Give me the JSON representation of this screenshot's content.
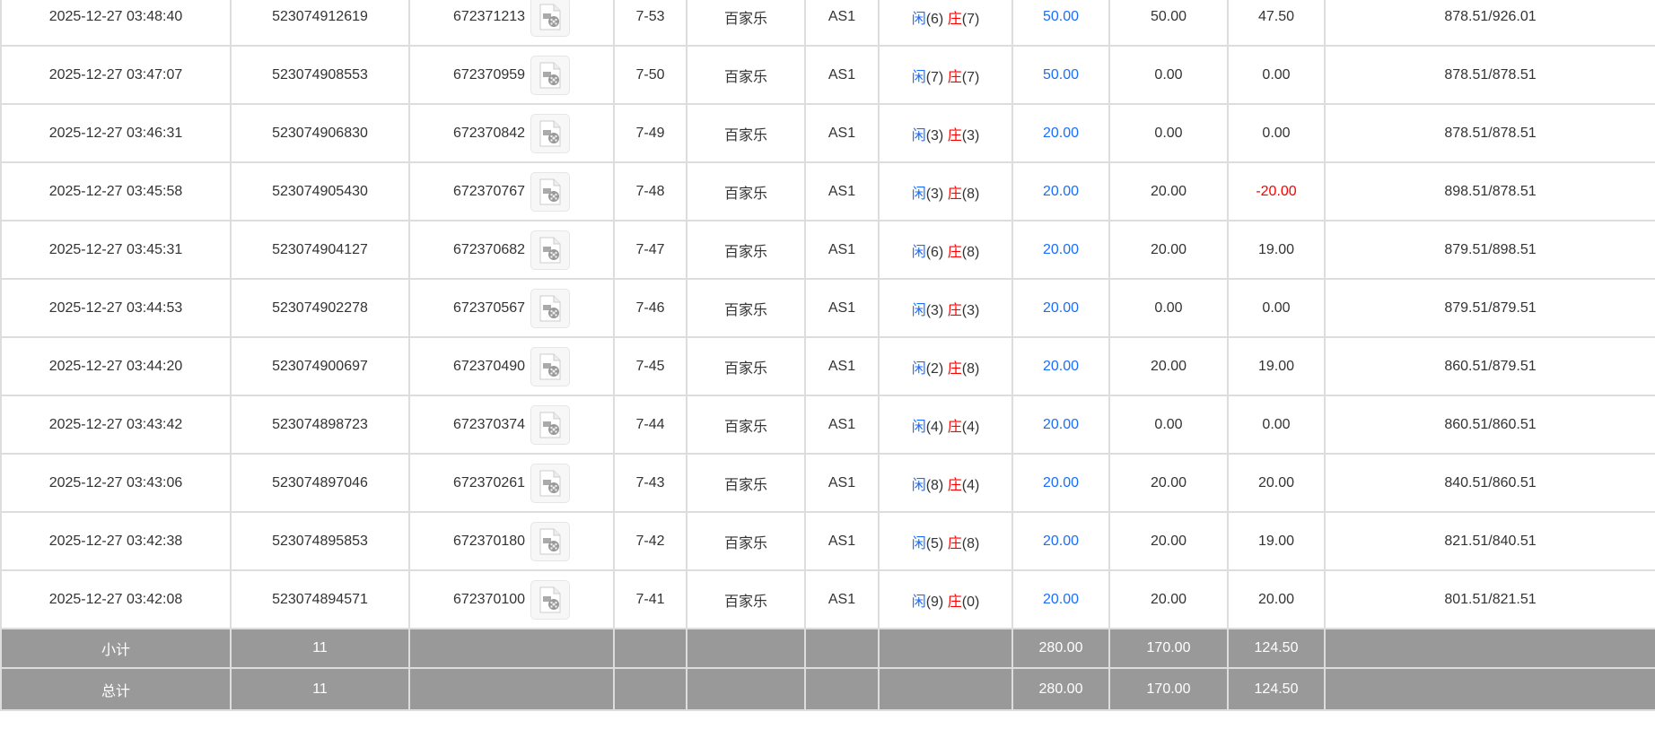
{
  "colors": {
    "player": "#1a6dff",
    "banker": "#ff0000",
    "bet": "#1a6dff",
    "negative": "#ff0000",
    "summary_bg": "#999999"
  },
  "rows": [
    {
      "time": "2025-12-27 03:48:40",
      "order": "523074912619",
      "round": "672371213",
      "icon": "video-file-icon",
      "shoe": "7-53",
      "game": "百家乐",
      "table": "AS1",
      "player_label": "闲",
      "player": "(6)",
      "banker_label": "庄",
      "banker": "(7)",
      "bet": "50.00",
      "valid": "50.00",
      "win": "47.50",
      "balance": "878.51/926.01"
    },
    {
      "time": "2025-12-27 03:47:07",
      "order": "523074908553",
      "round": "672370959",
      "icon": "video-file-icon",
      "shoe": "7-50",
      "game": "百家乐",
      "table": "AS1",
      "player_label": "闲",
      "player": "(7)",
      "banker_label": "庄",
      "banker": "(7)",
      "bet": "50.00",
      "valid": "0.00",
      "win": "0.00",
      "balance": "878.51/878.51"
    },
    {
      "time": "2025-12-27 03:46:31",
      "order": "523074906830",
      "round": "672370842",
      "icon": "video-file-icon",
      "shoe": "7-49",
      "game": "百家乐",
      "table": "AS1",
      "player_label": "闲",
      "player": "(3)",
      "banker_label": "庄",
      "banker": "(3)",
      "bet": "20.00",
      "valid": "0.00",
      "win": "0.00",
      "balance": "878.51/878.51"
    },
    {
      "time": "2025-12-27 03:45:58",
      "order": "523074905430",
      "round": "672370767",
      "icon": "video-file-icon",
      "shoe": "7-48",
      "game": "百家乐",
      "table": "AS1",
      "player_label": "闲",
      "player": "(3)",
      "banker_label": "庄",
      "banker": "(8)",
      "bet": "20.00",
      "valid": "20.00",
      "win": "-20.00",
      "balance": "898.51/878.51"
    },
    {
      "time": "2025-12-27 03:45:31",
      "order": "523074904127",
      "round": "672370682",
      "icon": "video-file-icon",
      "shoe": "7-47",
      "game": "百家乐",
      "table": "AS1",
      "player_label": "闲",
      "player": "(6)",
      "banker_label": "庄",
      "banker": "(8)",
      "bet": "20.00",
      "valid": "20.00",
      "win": "19.00",
      "balance": "879.51/898.51"
    },
    {
      "time": "2025-12-27 03:44:53",
      "order": "523074902278",
      "round": "672370567",
      "icon": "video-file-icon",
      "shoe": "7-46",
      "game": "百家乐",
      "table": "AS1",
      "player_label": "闲",
      "player": "(3)",
      "banker_label": "庄",
      "banker": "(3)",
      "bet": "20.00",
      "valid": "0.00",
      "win": "0.00",
      "balance": "879.51/879.51"
    },
    {
      "time": "2025-12-27 03:44:20",
      "order": "523074900697",
      "round": "672370490",
      "icon": "video-file-icon",
      "shoe": "7-45",
      "game": "百家乐",
      "table": "AS1",
      "player_label": "闲",
      "player": "(2)",
      "banker_label": "庄",
      "banker": "(8)",
      "bet": "20.00",
      "valid": "20.00",
      "win": "19.00",
      "balance": "860.51/879.51"
    },
    {
      "time": "2025-12-27 03:43:42",
      "order": "523074898723",
      "round": "672370374",
      "icon": "video-file-icon",
      "shoe": "7-44",
      "game": "百家乐",
      "table": "AS1",
      "player_label": "闲",
      "player": "(4)",
      "banker_label": "庄",
      "banker": "(4)",
      "bet": "20.00",
      "valid": "0.00",
      "win": "0.00",
      "balance": "860.51/860.51"
    },
    {
      "time": "2025-12-27 03:43:06",
      "order": "523074897046",
      "round": "672370261",
      "icon": "video-file-icon",
      "shoe": "7-43",
      "game": "百家乐",
      "table": "AS1",
      "player_label": "闲",
      "player": "(8)",
      "banker_label": "庄",
      "banker": "(4)",
      "bet": "20.00",
      "valid": "20.00",
      "win": "20.00",
      "balance": "840.51/860.51"
    },
    {
      "time": "2025-12-27 03:42:38",
      "order": "523074895853",
      "round": "672370180",
      "icon": "video-file-icon",
      "shoe": "7-42",
      "game": "百家乐",
      "table": "AS1",
      "player_label": "闲",
      "player": "(5)",
      "banker_label": "庄",
      "banker": "(8)",
      "bet": "20.00",
      "valid": "20.00",
      "win": "19.00",
      "balance": "821.51/840.51"
    },
    {
      "time": "2025-12-27 03:42:08",
      "order": "523074894571",
      "round": "672370100",
      "icon": "video-file-icon",
      "shoe": "7-41",
      "game": "百家乐",
      "table": "AS1",
      "player_label": "闲",
      "player": "(9)",
      "banker_label": "庄",
      "banker": "(0)",
      "bet": "20.00",
      "valid": "20.00",
      "win": "20.00",
      "balance": "801.51/821.51"
    }
  ],
  "subtotal": {
    "label": "小计",
    "count": "11",
    "bet": "280.00",
    "valid": "170.00",
    "win": "124.50"
  },
  "total": {
    "label": "总计",
    "count": "11",
    "bet": "280.00",
    "valid": "170.00",
    "win": "124.50"
  }
}
